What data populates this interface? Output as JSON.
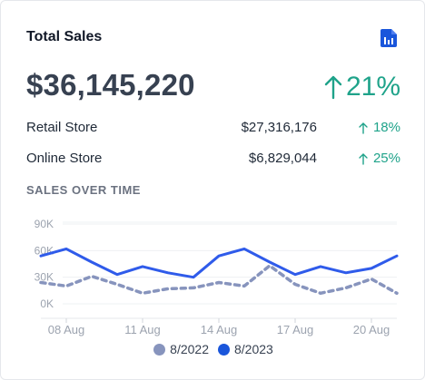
{
  "card": {
    "title": "Total Sales",
    "report_icon": "report-icon",
    "total": "$36,145,220",
    "total_change": "21%",
    "total_change_icon": "arrow-up-icon"
  },
  "breakdown": [
    {
      "label": "Retail Store",
      "amount": "$27,316,176",
      "change": "18%"
    },
    {
      "label": "Online Store",
      "amount": "$6,829,044",
      "change": "25%"
    }
  ],
  "section_title": "SALES OVER TIME",
  "colors": {
    "accent_blue": "#2f5bea",
    "muted_series": "#8794bd",
    "positive_green": "#1fa38a",
    "grid": "#eef0f3",
    "tick_text": "#9ca3af"
  },
  "chart_data": {
    "type": "line",
    "x": [
      "07 Aug",
      "08 Aug",
      "09 Aug",
      "10 Aug",
      "11 Aug",
      "12 Aug",
      "13 Aug",
      "14 Aug",
      "15 Aug",
      "16 Aug",
      "17 Aug",
      "18 Aug",
      "19 Aug",
      "20 Aug",
      "21 Aug"
    ],
    "xticks": [
      "08 Aug",
      "11 Aug",
      "14 Aug",
      "17 Aug",
      "20 Aug"
    ],
    "yticks": [
      "0K",
      "30K",
      "60K",
      "90K"
    ],
    "ylim": [
      0,
      100000
    ],
    "grid": true,
    "legend_position": "bottom",
    "series": [
      {
        "name": "8/2022",
        "style": "dashed",
        "color": "#8794bd",
        "values": [
          24000,
          20000,
          31000,
          22000,
          12000,
          17000,
          18000,
          24000,
          20000,
          43000,
          22000,
          12000,
          18000,
          28000,
          12000
        ]
      },
      {
        "name": "8/2023",
        "style": "solid",
        "color": "#2f5bea",
        "values": [
          54000,
          62000,
          47000,
          33000,
          42000,
          35000,
          30000,
          54000,
          62000,
          47000,
          33000,
          42000,
          35000,
          40000,
          54000
        ]
      }
    ]
  }
}
